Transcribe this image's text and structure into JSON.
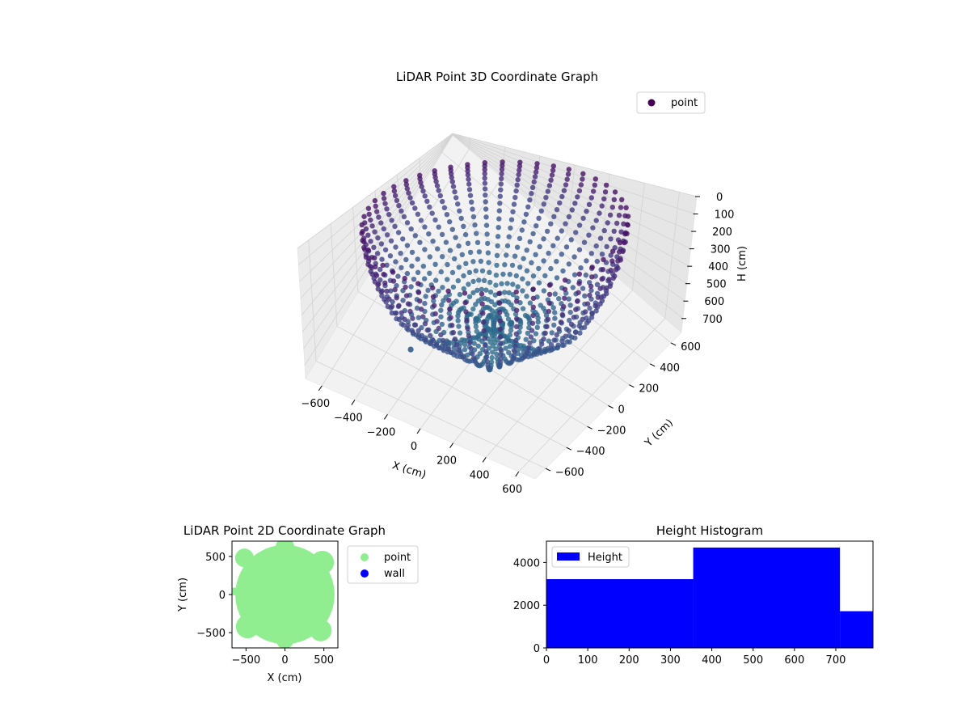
{
  "chart_data": [
    {
      "type": "scatter3d",
      "title": "LiDAR Point 3D Coordinate Graph",
      "xlabel": "X (cm)",
      "ylabel": "Y (cm)",
      "zlabel": "H (cm)",
      "xlim": [
        -700,
        700
      ],
      "ylim": [
        -700,
        700
      ],
      "zlim": [
        0,
        780
      ],
      "z_inverted": true,
      "x_ticks": [
        -600,
        -400,
        -200,
        0,
        200,
        400,
        600
      ],
      "y_ticks": [
        -600,
        -400,
        -200,
        0,
        200,
        400,
        600
      ],
      "z_ticks": [
        0,
        100,
        200,
        300,
        400,
        500,
        600,
        700
      ],
      "colormap": "viridis",
      "grid": true,
      "legend": {
        "placement": "upper-right",
        "entries": [
          {
            "label": "point",
            "color": "#440154"
          }
        ]
      },
      "series": [
        {
          "name": "point",
          "shape": "hemispherical-dome",
          "radius": 650,
          "max_height": 780,
          "ring_count": 48,
          "points_per_ring": 22
        }
      ],
      "outliers": [
        {
          "x": -260,
          "y": -380,
          "h": 700
        },
        {
          "x": -110,
          "y": -260,
          "h": 680
        }
      ]
    },
    {
      "type": "scatter",
      "title": "LiDAR Point 2D Coordinate Graph",
      "xlabel": "X (cm)",
      "ylabel": "Y (cm)",
      "xlim": [
        -680,
        680
      ],
      "ylim": [
        -700,
        700
      ],
      "x_ticks": [
        -500,
        0,
        500
      ],
      "y_ticks": [
        -500,
        0,
        500
      ],
      "legend": {
        "placement": "outside-right",
        "entries": [
          {
            "label": "point",
            "color": "#90ee90"
          },
          {
            "label": "wall",
            "color": "#0000ff"
          }
        ]
      },
      "point_region": {
        "shape": "disc",
        "radius": 650
      }
    },
    {
      "type": "histogram",
      "title": "Height Histogram",
      "xlim": [
        0,
        790
      ],
      "ylim": [
        0,
        5000
      ],
      "x_ticks": [
        0,
        100,
        200,
        300,
        400,
        500,
        600,
        700
      ],
      "y_ticks": [
        0,
        2000,
        4000
      ],
      "color": "#0000ff",
      "legend": {
        "placement": "upper-left",
        "entries": [
          {
            "label": "Height",
            "color": "#0000ff"
          }
        ]
      },
      "bins": [
        {
          "start": 0,
          "end": 355,
          "count": 3220
        },
        {
          "start": 355,
          "end": 710,
          "count": 4700
        },
        {
          "start": 710,
          "end": 790,
          "count": 1720
        }
      ]
    }
  ]
}
